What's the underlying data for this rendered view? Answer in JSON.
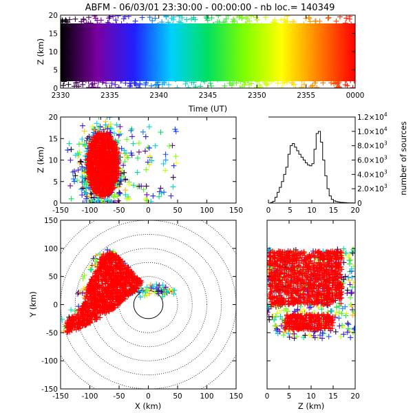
{
  "figure": {
    "title": "ABFM - 06/03/01 23:30:00 - 00:00:00 - nb loc.= 140349"
  },
  "chart_data": [
    {
      "panel": "time-height",
      "type": "scatter",
      "description_visible": "colored + markers, color progresses with time",
      "xlabel": "Time (UT)",
      "ylabel": "Z (km)",
      "xticks": [
        "2330",
        "2335",
        "2340",
        "2345",
        "2350",
        "2355",
        "0000"
      ],
      "xlim_minutes": [
        0,
        30
      ],
      "ylim": [
        0,
        20
      ],
      "yticks": [
        0,
        5,
        10,
        15,
        20
      ],
      "color_sequence": [
        "#000000",
        "#7a00a0",
        "#2020ff",
        "#00d0ff",
        "#00e060",
        "#80ff00",
        "#ffff00",
        "#ff8000",
        "#ff0000"
      ]
    },
    {
      "panel": "x-height",
      "type": "scatter",
      "xlabel": "",
      "ylabel": "Z (km)",
      "xlim": [
        -150,
        150
      ],
      "xticks": [
        -150,
        -100,
        -50,
        0,
        50,
        100,
        150
      ],
      "ylim": [
        0,
        20
      ],
      "yticks": [
        0,
        5,
        10,
        15,
        20
      ]
    },
    {
      "panel": "height-histogram",
      "type": "line",
      "xlim": [
        0,
        20
      ],
      "xticks": [
        0,
        5,
        10,
        15,
        20
      ],
      "ylim": [
        0,
        12000
      ],
      "ylabel": "number of sources",
      "ytick_labels": [
        {
          "value": 0,
          "mant": "0",
          "exp": ""
        },
        {
          "value": 2000,
          "mant": "2.0×10",
          "exp": "3"
        },
        {
          "value": 4000,
          "mant": "4.0×10",
          "exp": "3"
        },
        {
          "value": 6000,
          "mant": "6.0×10",
          "exp": "3"
        },
        {
          "value": 8000,
          "mant": "8.0×10",
          "exp": "3"
        },
        {
          "value": 10000,
          "mant": "1.0×10",
          "exp": "4"
        },
        {
          "value": 12000,
          "mant": "1.2×10",
          "exp": "4"
        }
      ],
      "series": [
        {
          "x": [
            0,
            0.5,
            1,
            1.5,
            2,
            2.5,
            3,
            3.5,
            4,
            4.5,
            5,
            5.5,
            6,
            6.5,
            7,
            7.5,
            8,
            8.5,
            9,
            9.5,
            10,
            10.5,
            11,
            11.5,
            12,
            12.5,
            13,
            13.5,
            14,
            14.5,
            15,
            15.5,
            16,
            16.5,
            17,
            17.5,
            18,
            18.5,
            19,
            19.5,
            20
          ],
          "y": [
            0,
            80,
            250,
            800,
            1500,
            2200,
            3000,
            4000,
            5000,
            6800,
            8000,
            8300,
            7800,
            7300,
            6800,
            6400,
            6000,
            5600,
            5300,
            5200,
            5500,
            7500,
            9700,
            10000,
            8500,
            6000,
            3800,
            2000,
            1000,
            500,
            300,
            200,
            150,
            100,
            80,
            60,
            40,
            30,
            20,
            10,
            0
          ]
        }
      ]
    },
    {
      "panel": "plan-view",
      "type": "scatter",
      "xlabel": "X (km)",
      "ylabel": "Y (km)",
      "xlim": [
        -150,
        150
      ],
      "ylim": [
        -150,
        150
      ],
      "xticks": [
        -150,
        -100,
        -50,
        0,
        50,
        100,
        150
      ],
      "yticks": [
        -150,
        -100,
        -50,
        0,
        50,
        100,
        150
      ],
      "range_rings_km": [
        25,
        50,
        75,
        100,
        125,
        150,
        175
      ]
    },
    {
      "panel": "height-y",
      "type": "scatter",
      "xlabel": "Z (km)",
      "xlim": [
        0,
        20
      ],
      "xticks": [
        0,
        5,
        10,
        15,
        20
      ],
      "ylim": [
        -150,
        150
      ],
      "yticks": [
        -150,
        -100,
        -50,
        0,
        50,
        100,
        150
      ]
    }
  ]
}
